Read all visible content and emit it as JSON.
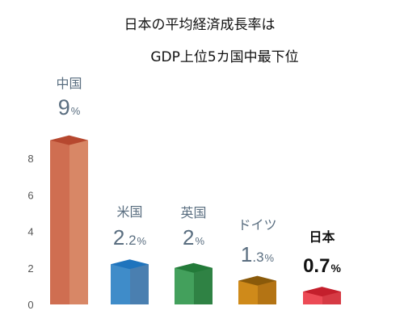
{
  "chart_data": {
    "type": "bar",
    "title": "日本の平均経済成長率は",
    "subtitle": "GDP上位5カ国中最下位",
    "xlabel": "",
    "ylabel": "",
    "ylim": [
      0,
      9.5
    ],
    "yticks": [
      "0",
      "2",
      "4",
      "6",
      "8"
    ],
    "categories": [
      "中国",
      "米国",
      "英国",
      "ドイツ",
      "日本"
    ],
    "values": [
      9,
      2.2,
      2,
      1.3,
      0.7
    ],
    "value_labels": [
      {
        "main": "9",
        "dec": "",
        "unit": "%"
      },
      {
        "main": "2",
        "dec": ".2",
        "unit": "%"
      },
      {
        "main": "2",
        "dec": "",
        "unit": "%"
      },
      {
        "main": "1",
        "dec": ".3",
        "unit": "%"
      },
      {
        "main": "0.7",
        "dec": "",
        "unit": "%"
      }
    ],
    "colors": [
      {
        "front": "#cf6e51",
        "side": "#d88766",
        "top": "#b6482f"
      },
      {
        "front": "#3f8cc9",
        "side": "#4a7fb0",
        "top": "#1f74bd"
      },
      {
        "front": "#43a05c",
        "side": "#2f8244",
        "top": "#237a39"
      },
      {
        "front": "#cf8a1a",
        "side": "#b47414",
        "top": "#8a5a0a"
      },
      {
        "front": "#ec4a55",
        "side": "#d63a44",
        "top": "#c41f2c"
      }
    ],
    "highlight": "日本",
    "grid": false,
    "legend": "none"
  }
}
